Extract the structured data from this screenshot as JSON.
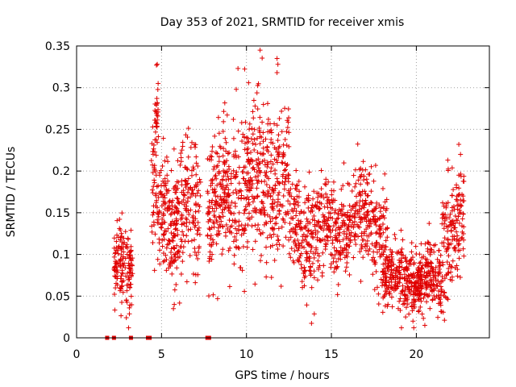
{
  "chart_data": {
    "type": "scatter",
    "title": "Day 353 of 2021, SRMTID for receiver xmis",
    "xlabel": "GPS time / hours",
    "ylabel": "SRMTID / TECUs",
    "xlim": [
      0,
      24.3
    ],
    "ylim": [
      0,
      0.35
    ],
    "xticks": [
      0,
      5,
      10,
      15,
      20
    ],
    "yticks": [
      0,
      0.05,
      0.1,
      0.15,
      0.2,
      0.25,
      0.3,
      0.35
    ],
    "xtick_labels": [
      "0",
      "5",
      "10",
      "15",
      "20"
    ],
    "ytick_labels": [
      "0",
      "0.05",
      "0.1",
      "0.15",
      "0.2",
      "0.25",
      "0.3",
      "0.35"
    ],
    "grid": true,
    "marker": "+",
    "color": "#e00000",
    "zero_markers": [
      {
        "x": 1.8,
        "y": 0
      },
      {
        "x": 2.2,
        "y": 0
      },
      {
        "x": 3.2,
        "y": 0
      },
      {
        "x": 4.2,
        "y": 0
      },
      {
        "x": 4.3,
        "y": 0
      },
      {
        "x": 7.7,
        "y": 0
      },
      {
        "x": 7.8,
        "y": 0
      }
    ],
    "segments": [
      {
        "start": 2.2,
        "end": 3.3,
        "base": 0.085,
        "spread": 0.035,
        "density": 150
      },
      {
        "start": 4.4,
        "end": 4.9,
        "base": 0.15,
        "spread": 0.06,
        "density": 60
      },
      {
        "start": 4.6,
        "end": 4.8,
        "base": 0.25,
        "spread": 0.03,
        "density": 25
      },
      {
        "start": 4.95,
        "end": 7.3,
        "base": 0.15,
        "spread": 0.05,
        "density": 300
      },
      {
        "start": 7.7,
        "end": 9.2,
        "base": 0.16,
        "spread": 0.05,
        "density": 200
      },
      {
        "start": 9.2,
        "end": 12.5,
        "base": 0.19,
        "spread": 0.06,
        "density": 420
      },
      {
        "start": 12.5,
        "end": 15.5,
        "base": 0.13,
        "spread": 0.045,
        "density": 330
      },
      {
        "start": 15.5,
        "end": 18.3,
        "base": 0.14,
        "spread": 0.04,
        "density": 300
      },
      {
        "start": 18.0,
        "end": 21.5,
        "base": 0.07,
        "spread": 0.025,
        "density": 450
      },
      {
        "start": 21.5,
        "end": 22.8,
        "base": 0.13,
        "spread": 0.045,
        "density": 160
      }
    ],
    "highlights": [
      {
        "x": 4.7,
        "y": 0.327
      },
      {
        "x": 4.75,
        "y": 0.328
      },
      {
        "x": 4.8,
        "y": 0.305
      },
      {
        "x": 9.5,
        "y": 0.323
      },
      {
        "x": 9.4,
        "y": 0.298
      },
      {
        "x": 11.8,
        "y": 0.335
      },
      {
        "x": 11.85,
        "y": 0.328
      },
      {
        "x": 11.8,
        "y": 0.318
      },
      {
        "x": 5.7,
        "y": 0.035
      },
      {
        "x": 5.75,
        "y": 0.04
      },
      {
        "x": 20.5,
        "y": 0.015
      },
      {
        "x": 19.8,
        "y": 0.02
      },
      {
        "x": 8.3,
        "y": 0.047
      },
      {
        "x": 22.5,
        "y": 0.232
      },
      {
        "x": 22.6,
        "y": 0.22
      }
    ]
  }
}
